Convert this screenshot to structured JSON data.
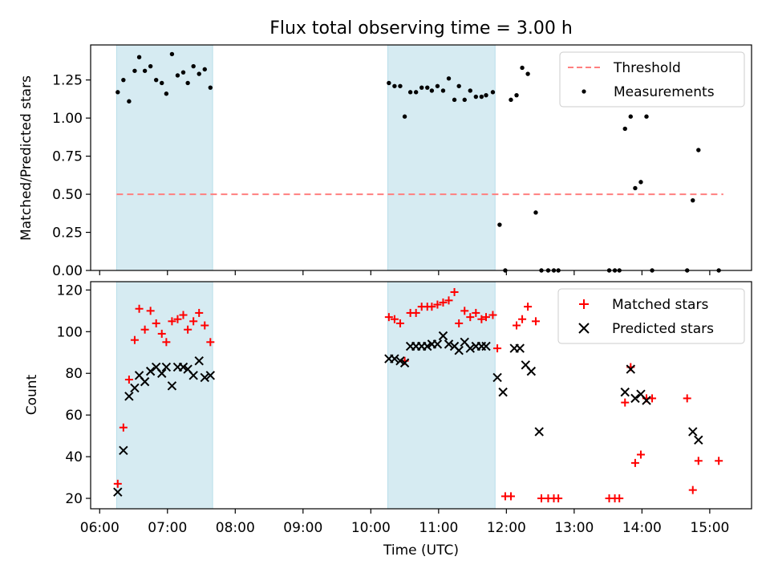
{
  "title": "Flux total observing time = 3.00 h",
  "chart_data": [
    {
      "type": "scatter",
      "ylabel": "Matched/Predicted stars",
      "xlim": [
        "05:52",
        "15:37"
      ],
      "ylim": [
        0,
        1.48
      ],
      "yticks": [
        "0.00",
        "0.25",
        "0.50",
        "0.75",
        "1.00",
        "1.25"
      ],
      "shaded_intervals": [
        [
          "06:15",
          "07:40"
        ],
        [
          "10:15",
          "11:50"
        ]
      ],
      "threshold": {
        "name": "Threshold",
        "value": 0.5,
        "x_range": [
          "06:15",
          "15:12"
        ],
        "color": "#ff7f7f"
      },
      "legend_position": "top-right",
      "series": [
        {
          "name": "Measurements",
          "marker": "dot",
          "color": "#000000",
          "points": [
            [
              "06:16",
              1.17
            ],
            [
              "06:21",
              1.25
            ],
            [
              "06:26",
              1.11
            ],
            [
              "06:31",
              1.31
            ],
            [
              "06:35",
              1.4
            ],
            [
              "06:40",
              1.31
            ],
            [
              "06:45",
              1.34
            ],
            [
              "06:50",
              1.25
            ],
            [
              "06:55",
              1.23
            ],
            [
              "06:59",
              1.16
            ],
            [
              "07:04",
              1.42
            ],
            [
              "07:09",
              1.28
            ],
            [
              "07:14",
              1.3
            ],
            [
              "07:18",
              1.23
            ],
            [
              "07:23",
              1.34
            ],
            [
              "07:28",
              1.29
            ],
            [
              "07:33",
              1.32
            ],
            [
              "07:38",
              1.2
            ],
            [
              "10:16",
              1.23
            ],
            [
              "10:21",
              1.21
            ],
            [
              "10:26",
              1.21
            ],
            [
              "10:30",
              1.01
            ],
            [
              "10:35",
              1.17
            ],
            [
              "10:40",
              1.17
            ],
            [
              "10:45",
              1.2
            ],
            [
              "10:50",
              1.2
            ],
            [
              "10:54",
              1.18
            ],
            [
              "10:59",
              1.21
            ],
            [
              "11:04",
              1.18
            ],
            [
              "11:09",
              1.26
            ],
            [
              "11:14",
              1.12
            ],
            [
              "11:18",
              1.21
            ],
            [
              "11:23",
              1.12
            ],
            [
              "11:28",
              1.18
            ],
            [
              "11:33",
              1.14
            ],
            [
              "11:38",
              1.14
            ],
            [
              "11:42",
              1.15
            ],
            [
              "11:48",
              1.17
            ],
            [
              "11:54",
              0.3
            ],
            [
              "11:59",
              0.0
            ],
            [
              "12:04",
              1.12
            ],
            [
              "12:09",
              1.15
            ],
            [
              "12:14",
              1.33
            ],
            [
              "12:19",
              1.29
            ],
            [
              "12:26",
              0.38
            ],
            [
              "12:31",
              0.0
            ],
            [
              "12:37",
              0.0
            ],
            [
              "12:42",
              0.0
            ],
            [
              "12:46",
              0.0
            ],
            [
              "13:31",
              0.0
            ],
            [
              "13:36",
              0.0
            ],
            [
              "13:40",
              0.0
            ],
            [
              "13:45",
              0.93
            ],
            [
              "13:50",
              1.01
            ],
            [
              "13:54",
              0.54
            ],
            [
              "13:59",
              0.58
            ],
            [
              "14:04",
              1.01
            ],
            [
              "14:09",
              0.0
            ],
            [
              "14:40",
              0.0
            ],
            [
              "14:45",
              0.46
            ],
            [
              "14:50",
              0.79
            ],
            [
              "15:08",
              0.0
            ]
          ]
        }
      ]
    },
    {
      "type": "scatter",
      "xlabel": "Time (UTC)",
      "ylabel": "Count",
      "xlim": [
        "05:52",
        "15:37"
      ],
      "ylim": [
        15,
        124
      ],
      "yticks": [
        "20",
        "40",
        "60",
        "80",
        "100",
        "120"
      ],
      "xticks": [
        "06:00",
        "07:00",
        "08:00",
        "09:00",
        "10:00",
        "11:00",
        "12:00",
        "13:00",
        "14:00",
        "15:00"
      ],
      "shaded_intervals": [
        [
          "06:15",
          "07:40"
        ],
        [
          "10:15",
          "11:50"
        ]
      ],
      "legend_position": "top-right",
      "series": [
        {
          "name": "Matched stars",
          "marker": "plus",
          "color": "#ff0000",
          "points": [
            [
              "06:16",
              27
            ],
            [
              "06:21",
              54
            ],
            [
              "06:26",
              77
            ],
            [
              "06:31",
              96
            ],
            [
              "06:35",
              111
            ],
            [
              "06:40",
              101
            ],
            [
              "06:45",
              110
            ],
            [
              "06:50",
              104
            ],
            [
              "06:55",
              99
            ],
            [
              "06:59",
              95
            ],
            [
              "07:04",
              105
            ],
            [
              "07:09",
              106
            ],
            [
              "07:14",
              108
            ],
            [
              "07:18",
              101
            ],
            [
              "07:23",
              105
            ],
            [
              "07:28",
              109
            ],
            [
              "07:33",
              103
            ],
            [
              "07:38",
              95
            ],
            [
              "10:16",
              107
            ],
            [
              "10:21",
              106
            ],
            [
              "10:26",
              104
            ],
            [
              "10:30",
              86
            ],
            [
              "10:35",
              109
            ],
            [
              "10:40",
              109
            ],
            [
              "10:45",
              112
            ],
            [
              "10:50",
              112
            ],
            [
              "10:54",
              112
            ],
            [
              "10:59",
              113
            ],
            [
              "11:04",
              114
            ],
            [
              "11:09",
              115
            ],
            [
              "11:14",
              119
            ],
            [
              "11:18",
              104
            ],
            [
              "11:23",
              110
            ],
            [
              "11:28",
              107
            ],
            [
              "11:33",
              109
            ],
            [
              "11:38",
              106
            ],
            [
              "11:42",
              107
            ],
            [
              "11:48",
              108
            ],
            [
              "11:52",
              92
            ],
            [
              "11:59",
              21
            ],
            [
              "12:04",
              21
            ],
            [
              "12:09",
              103
            ],
            [
              "12:14",
              106
            ],
            [
              "12:19",
              112
            ],
            [
              "12:26",
              105
            ],
            [
              "12:31",
              20
            ],
            [
              "12:37",
              20
            ],
            [
              "12:42",
              20
            ],
            [
              "12:46",
              20
            ],
            [
              "13:31",
              20
            ],
            [
              "13:36",
              20
            ],
            [
              "13:40",
              20
            ],
            [
              "13:45",
              66
            ],
            [
              "13:50",
              83
            ],
            [
              "13:54",
              37
            ],
            [
              "13:59",
              41
            ],
            [
              "14:04",
              68
            ],
            [
              "14:09",
              68
            ],
            [
              "14:40",
              68
            ],
            [
              "14:45",
              24
            ],
            [
              "14:50",
              38
            ],
            [
              "15:08",
              38
            ]
          ]
        },
        {
          "name": "Predicted stars",
          "marker": "x",
          "color": "#000000",
          "points": [
            [
              "06:16",
              23
            ],
            [
              "06:21",
              43
            ],
            [
              "06:26",
              69
            ],
            [
              "06:31",
              73
            ],
            [
              "06:35",
              79
            ],
            [
              "06:40",
              76
            ],
            [
              "06:45",
              81
            ],
            [
              "06:50",
              83
            ],
            [
              "06:55",
              80
            ],
            [
              "06:59",
              83
            ],
            [
              "07:04",
              74
            ],
            [
              "07:09",
              83
            ],
            [
              "07:14",
              83
            ],
            [
              "07:18",
              82
            ],
            [
              "07:23",
              79
            ],
            [
              "07:28",
              86
            ],
            [
              "07:33",
              78
            ],
            [
              "07:38",
              79
            ],
            [
              "10:16",
              87
            ],
            [
              "10:21",
              87
            ],
            [
              "10:26",
              86
            ],
            [
              "10:30",
              85
            ],
            [
              "10:35",
              93
            ],
            [
              "10:40",
              93
            ],
            [
              "10:45",
              93
            ],
            [
              "10:50",
              93
            ],
            [
              "10:54",
              94
            ],
            [
              "10:59",
              94
            ],
            [
              "11:04",
              98
            ],
            [
              "11:09",
              94
            ],
            [
              "11:14",
              93
            ],
            [
              "11:18",
              91
            ],
            [
              "11:23",
              95
            ],
            [
              "11:28",
              92
            ],
            [
              "11:33",
              93
            ],
            [
              "11:38",
              93
            ],
            [
              "11:42",
              93
            ],
            [
              "11:52",
              78
            ],
            [
              "11:57",
              71
            ],
            [
              "12:07",
              92
            ],
            [
              "12:12",
              92
            ],
            [
              "12:17",
              84
            ],
            [
              "12:22",
              81
            ],
            [
              "12:29",
              52
            ],
            [
              "13:45",
              71
            ],
            [
              "13:50",
              82
            ],
            [
              "13:54",
              68
            ],
            [
              "13:59",
              70
            ],
            [
              "14:04",
              67
            ],
            [
              "14:45",
              52
            ],
            [
              "14:50",
              48
            ]
          ]
        }
      ]
    }
  ]
}
